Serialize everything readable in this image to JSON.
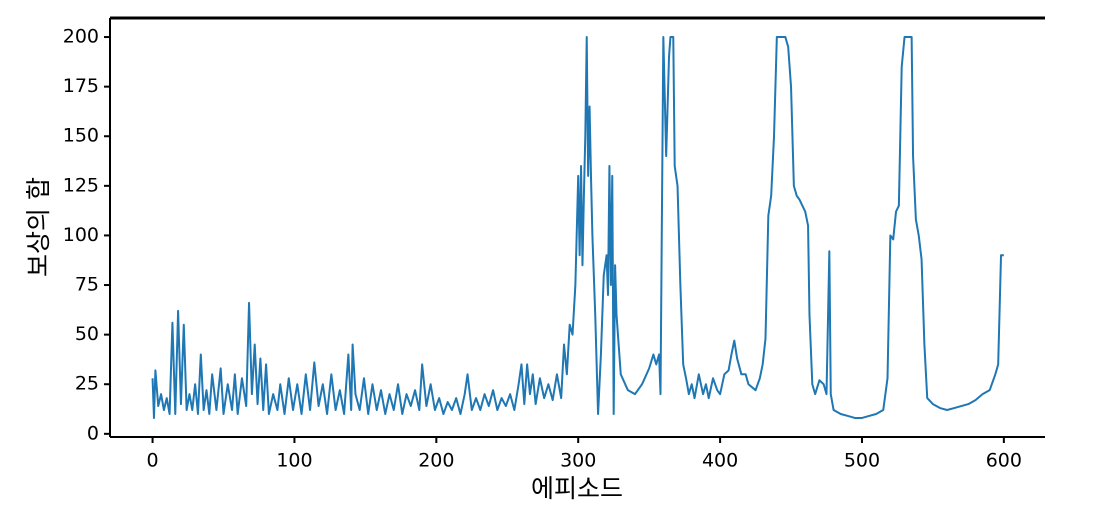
{
  "chart_data": {
    "type": "line",
    "xlabel": "에피소드",
    "ylabel": "보상의 합",
    "color": "#1f77b4",
    "xlim": [
      -30,
      629
    ],
    "ylim": [
      -1.6,
      209.6
    ],
    "xticks": [
      0,
      100,
      200,
      300,
      400,
      500,
      600
    ],
    "yticks": [
      0,
      25,
      50,
      75,
      100,
      125,
      150,
      175,
      200
    ],
    "x": [
      0,
      1,
      2,
      4,
      6,
      8,
      10,
      12,
      14,
      16,
      18,
      20,
      22,
      24,
      26,
      28,
      30,
      32,
      34,
      36,
      38,
      40,
      42,
      45,
      48,
      50,
      53,
      56,
      58,
      60,
      63,
      66,
      68,
      70,
      72,
      74,
      76,
      78,
      80,
      82,
      85,
      88,
      90,
      93,
      96,
      99,
      102,
      105,
      108,
      111,
      114,
      117,
      120,
      123,
      126,
      129,
      132,
      135,
      138,
      140,
      141,
      143,
      146,
      149,
      152,
      155,
      158,
      161,
      164,
      167,
      170,
      173,
      176,
      179,
      182,
      185,
      188,
      190,
      193,
      196,
      199,
      202,
      205,
      208,
      211,
      214,
      217,
      220,
      222,
      225,
      228,
      231,
      234,
      237,
      240,
      243,
      246,
      249,
      252,
      255,
      258,
      260,
      262,
      264,
      266,
      268,
      270,
      273,
      276,
      279,
      282,
      285,
      288,
      290,
      292,
      294,
      296,
      298,
      300,
      301,
      302,
      303,
      304,
      305,
      306,
      307,
      308,
      309,
      310,
      312,
      314,
      316,
      318,
      320,
      321,
      322,
      323,
      324,
      325,
      326,
      327,
      330,
      335,
      340,
      345,
      350,
      353,
      355,
      357,
      358,
      360,
      362,
      364,
      365,
      367,
      368,
      370,
      372,
      374,
      376,
      378,
      380,
      382,
      385,
      388,
      390,
      392,
      395,
      398,
      400,
      403,
      406,
      408,
      410,
      412,
      415,
      418,
      420,
      425,
      428,
      430,
      432,
      434,
      436,
      438,
      440,
      442,
      446,
      448,
      450,
      452,
      454,
      456,
      458,
      460,
      462,
      463,
      465,
      467,
      470,
      473,
      475,
      477,
      478,
      480,
      485,
      490,
      495,
      500,
      505,
      510,
      515,
      518,
      520,
      522,
      524,
      526,
      528,
      530,
      535,
      536,
      538,
      540,
      542,
      544,
      546,
      550,
      555,
      560,
      565,
      570,
      575,
      580,
      585,
      590,
      594,
      596,
      598,
      600
    ],
    "values": [
      28,
      8,
      32,
      14,
      20,
      12,
      18,
      10,
      56,
      10,
      62,
      15,
      55,
      12,
      20,
      12,
      25,
      10,
      40,
      12,
      22,
      10,
      30,
      12,
      33,
      10,
      25,
      12,
      30,
      10,
      28,
      14,
      66,
      20,
      45,
      15,
      38,
      12,
      35,
      10,
      20,
      12,
      25,
      10,
      28,
      12,
      25,
      10,
      30,
      12,
      36,
      14,
      25,
      10,
      30,
      12,
      22,
      10,
      40,
      12,
      45,
      20,
      12,
      28,
      10,
      25,
      12,
      22,
      10,
      20,
      12,
      25,
      10,
      20,
      14,
      22,
      12,
      35,
      14,
      25,
      12,
      18,
      10,
      16,
      12,
      18,
      10,
      20,
      30,
      12,
      18,
      12,
      20,
      14,
      22,
      12,
      18,
      14,
      20,
      12,
      25,
      35,
      15,
      35,
      20,
      30,
      15,
      28,
      18,
      25,
      17,
      30,
      18,
      45,
      30,
      55,
      50,
      75,
      130,
      90,
      135,
      85,
      120,
      150,
      200,
      130,
      165,
      130,
      100,
      60,
      10,
      40,
      80,
      90,
      70,
      135,
      75,
      130,
      10,
      85,
      60,
      30,
      22,
      20,
      25,
      33,
      40,
      35,
      40,
      20,
      200,
      140,
      190,
      200,
      200,
      135,
      125,
      75,
      35,
      28,
      20,
      25,
      18,
      30,
      20,
      25,
      18,
      28,
      22,
      20,
      30,
      32,
      40,
      47,
      38,
      30,
      30,
      25,
      22,
      28,
      35,
      48,
      110,
      120,
      150,
      200,
      200,
      200,
      195,
      175,
      125,
      120,
      118,
      115,
      112,
      105,
      60,
      25,
      20,
      27,
      25,
      20,
      92,
      20,
      12,
      10,
      9,
      8,
      8,
      9,
      10,
      12,
      28,
      100,
      98,
      112,
      115,
      185,
      200,
      200,
      140,
      108,
      100,
      88,
      45,
      18,
      15,
      13,
      12,
      13,
      14,
      15,
      17,
      20,
      22,
      30,
      35,
      90,
      90
    ]
  }
}
